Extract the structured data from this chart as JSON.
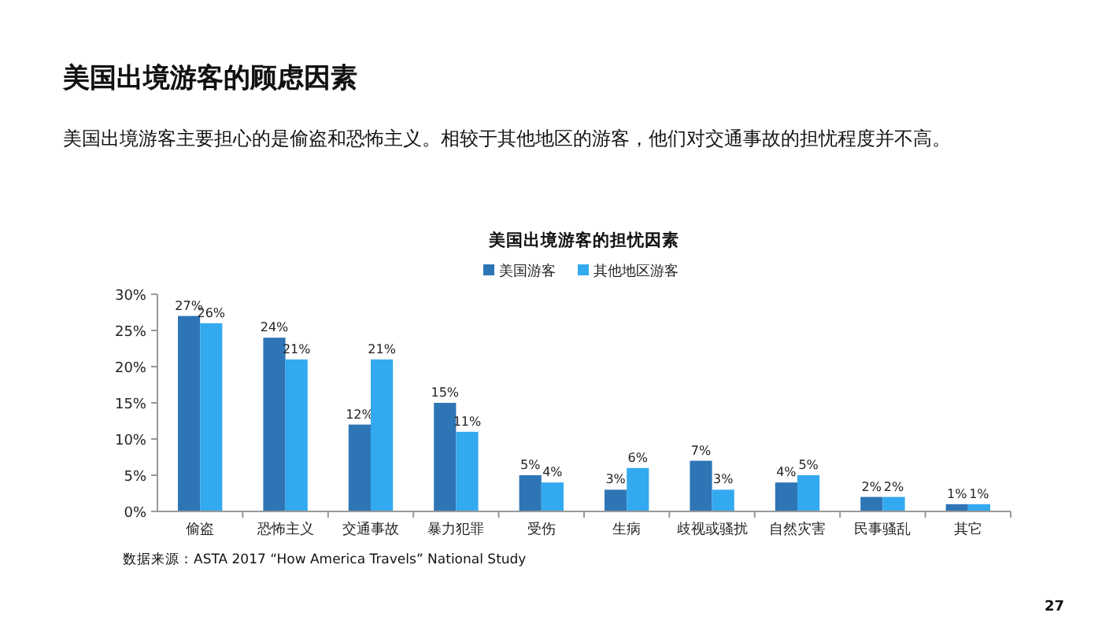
{
  "chart_data": {
    "type": "bar",
    "title": "美国出境游客的担忧因素",
    "categories": [
      "偷盗",
      "恐怖主义",
      "交通事故",
      "暴力犯罪",
      "受伤",
      "生病",
      "歧视或骚扰",
      "自然灾害",
      "民事骚乱",
      "其它"
    ],
    "series": [
      {
        "name": "美国游客",
        "color": "#2e75b6",
        "values": [
          27,
          24,
          12,
          15,
          5,
          3,
          7,
          4,
          2,
          1
        ],
        "value_labels": [
          "27%",
          "24%",
          "12%",
          "15%",
          "5%",
          "3%",
          "7%",
          "4%",
          "2%",
          "1%"
        ]
      },
      {
        "name": "其他地区游客",
        "color": "#33a9ef",
        "values": [
          26,
          21,
          21,
          11,
          4,
          6,
          3,
          5,
          2,
          1
        ],
        "value_labels": [
          "26%",
          "21%",
          "21%",
          "11%",
          "4%",
          "6%",
          "3%",
          "5%",
          "2%",
          "1%"
        ]
      }
    ],
    "ylim": [
      0,
      30
    ],
    "yticks": [
      {
        "value": 0,
        "label": "0%"
      },
      {
        "value": 5,
        "label": "5%"
      },
      {
        "value": 10,
        "label": "10%"
      },
      {
        "value": 15,
        "label": "15%"
      },
      {
        "value": 20,
        "label": "20%"
      },
      {
        "value": 25,
        "label": "25%"
      },
      {
        "value": 30,
        "label": "30%"
      }
    ],
    "legend": "top",
    "annotations": [
      "美国出境游客的顾虑因素",
      "美国出境游客主要担心的是偷盗和恐怖主义。相较于其他地区的游客，他们对交通事故的担忧程度并不高。",
      "数据来源：ASTA 2017 “How America Travels” National Study",
      "27"
    ]
  }
}
